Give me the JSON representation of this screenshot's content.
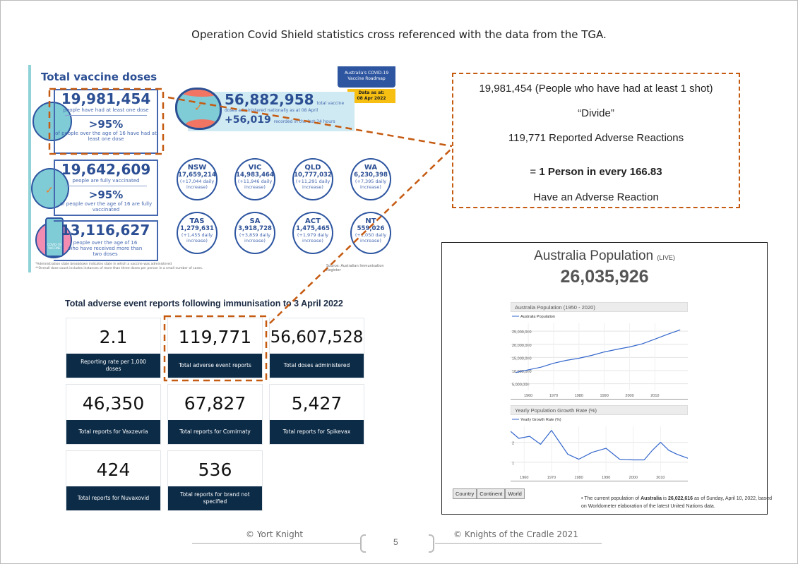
{
  "slide": {
    "title": "Operation Covid Shield statistics cross referenced with the data from the TGA.",
    "page_number": "5"
  },
  "infographic": {
    "title": "Total vaccine doses",
    "roadmap": "Australia's COVID-19 Vaccine Roadmap",
    "data_as_at": "Data as at:",
    "data_date": "08 Apr 2022",
    "first_dose": {
      "value": "19,981,454",
      "label": "people have had at least one dose",
      "pct": ">95%",
      "pct_label": "of people over the age of 16 have had at least one dose"
    },
    "fully": {
      "value": "19,642,609",
      "label": "people are fully vaccinated",
      "pct": ">95%",
      "pct_label": "of people over the age of 16 are fully vaccinated"
    },
    "booster": {
      "value": "13,116,627",
      "label": "people over the age of 16 who have received more than two doses",
      "vial_label": "COVID-19 VACCINE"
    },
    "total": {
      "value": "56,882,958",
      "label_a": "total vaccine",
      "label_b": "doses administered nationally as at 08 April",
      "daily": "+56,019",
      "daily_label": "recorded in the last 24 hours"
    },
    "states": [
      {
        "name": "NSW",
        "value": "17,659,214",
        "inc": "(+17,044 daily increase)"
      },
      {
        "name": "VIC",
        "value": "14,983,464",
        "inc": "(+11,946 daily increase)"
      },
      {
        "name": "QLD",
        "value": "10,777,032",
        "inc": "(+11,291 daily increase)"
      },
      {
        "name": "WA",
        "value": "6,230,398",
        "inc": "(+7,395 daily increase)"
      },
      {
        "name": "TAS",
        "value": "1,279,631",
        "inc": "(+1,455 daily increase)"
      },
      {
        "name": "SA",
        "value": "3,918,728",
        "inc": "(+3,859 daily increase)"
      },
      {
        "name": "ACT",
        "value": "1,475,465",
        "inc": "(+1,979 daily increase)"
      },
      {
        "name": "NT",
        "value": "559,026",
        "inc": "(+1,050 daily increase)"
      }
    ],
    "footnote1": "*Administration state breakdown indicates state in which a vaccine was administered",
    "footnote2": "**Overall dose count includes instances of more than three doses per person in a small number of cases.",
    "source": "Source: Australian Immunisation Register"
  },
  "tga": {
    "title": "Total adverse event reports following immunisation to 3 April 2022",
    "cards": [
      {
        "value": "2.1",
        "label": "Reporting rate per 1,000 doses"
      },
      {
        "value": "119,771",
        "label": "Total adverse event reports"
      },
      {
        "value": "56,607,528",
        "label": "Total doses administered"
      },
      {
        "value": "46,350",
        "label": "Total reports for Vaxzevria"
      },
      {
        "value": "67,827",
        "label": "Total reports for Comirnaty"
      },
      {
        "value": "5,427",
        "label": "Total reports for Spikevax"
      },
      {
        "value": "424",
        "label": "Total reports for Nuvaxovid"
      },
      {
        "value": "536",
        "label": "Total reports for brand not specified"
      }
    ]
  },
  "calc": {
    "line1": "19,981,454 (People who have had at least 1 shot)",
    "line2": "“Divide”",
    "line3": "119,771 Reported Adverse Reactions",
    "line4_prefix": "= ",
    "line4_bold": "1 Person in every 166.83",
    "line5": "Have an Adverse Reaction"
  },
  "population": {
    "heading": "Australia Population",
    "live": "(LIVE)",
    "count": "26,035,926",
    "buttons": [
      "Country",
      "Continent",
      "World"
    ],
    "note_a": "The current population of ",
    "note_country": "Australia",
    "note_b": " is ",
    "note_value": "26,022,616",
    "note_c": " as of Sunday, April 10, 2022, based on Worldometer elaboration of the latest United Nations data."
  },
  "chart_data": [
    {
      "type": "line",
      "title": "Australia Population (1950 - 2020)",
      "series": [
        {
          "name": "Australia Population",
          "x": [
            1955,
            1960,
            1965,
            1970,
            1975,
            1980,
            1985,
            1990,
            1995,
            2000,
            2005,
            2010,
            2015,
            2020
          ],
          "values": [
            9300000,
            10300000,
            11300000,
            12800000,
            13900000,
            14700000,
            15800000,
            17100000,
            18100000,
            19000000,
            20200000,
            22000000,
            23800000,
            25500000
          ]
        }
      ],
      "yticks": [
        "5,000,000",
        "10,000,000",
        "15,000,000",
        "20,000,000",
        "25,000,000"
      ],
      "ylim": [
        2500000,
        28000000
      ],
      "xticks": [
        "1960",
        "1970",
        "1980",
        "1990",
        "2000",
        "2010"
      ],
      "xlim": [
        1953,
        2023
      ]
    },
    {
      "type": "line",
      "title": "Yearly Population Growth Rate (%)",
      "series": [
        {
          "name": "Yearly Growth Rate (%)",
          "x": [
            1955,
            1958,
            1962,
            1966,
            1970,
            1973,
            1976,
            1980,
            1985,
            1990,
            1995,
            2000,
            2004,
            2007,
            2010,
            2013,
            2016,
            2020
          ],
          "values": [
            2.55,
            2.2,
            2.3,
            1.9,
            2.6,
            2.0,
            1.4,
            1.15,
            1.5,
            1.7,
            1.15,
            1.12,
            1.12,
            1.6,
            2.0,
            1.6,
            1.4,
            1.2
          ]
        }
      ],
      "yticks": [
        "1",
        "2"
      ],
      "ylim": [
        0.5,
        2.8
      ],
      "xticks": [
        "1960",
        "1970",
        "1980",
        "1990",
        "2000",
        "2010"
      ],
      "xlim": [
        1955,
        2020
      ]
    }
  ],
  "footer": {
    "left": "© Yort Knight",
    "right": "© Knights of the Cradle 2021"
  },
  "colors": {
    "accent_orange": "#c55a11",
    "navy": "#0c2b47",
    "infographic_blue": "#2c4f94"
  }
}
